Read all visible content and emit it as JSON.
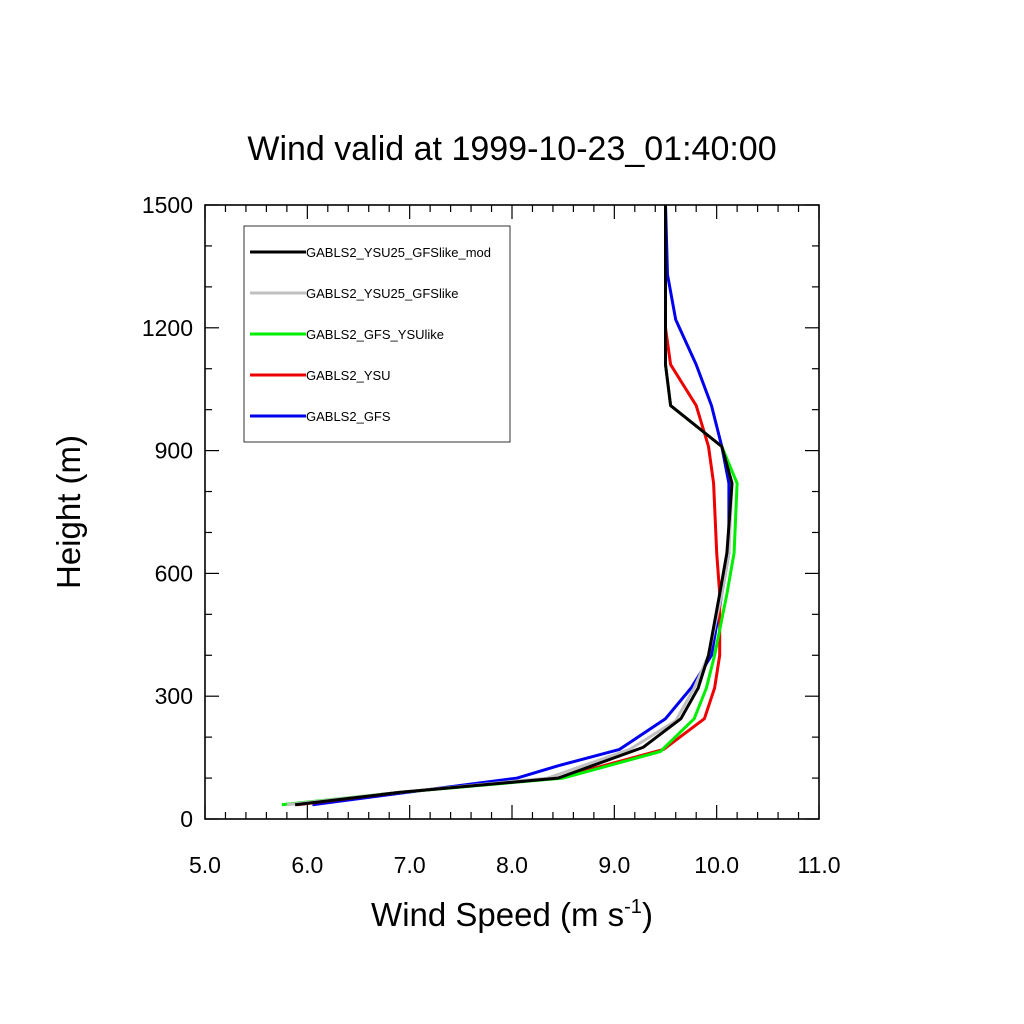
{
  "chart_data": {
    "type": "line",
    "title": "Wind valid at 1999-10-23_01:40:00",
    "xlabel": "Wind Speed (m s",
    "xlabel_sup": "-1",
    "xlabel_close": ")",
    "ylabel": "Height (m)",
    "xlim": [
      5.0,
      11.0
    ],
    "ylim": [
      0,
      1500
    ],
    "x_ticks": [
      "5.0",
      "6.0",
      "7.0",
      "8.0",
      "9.0",
      "10.0",
      "11.0"
    ],
    "y_ticks": [
      "0",
      "300",
      "600",
      "900",
      "1200",
      "1500"
    ],
    "legend_position": "top-left",
    "grid": false,
    "series": [
      {
        "name": "GABLS2_YSU25_GFSlike_mod",
        "color": "#000000",
        "points": [
          [
            5.88,
            35
          ],
          [
            6.9,
            65
          ],
          [
            8.45,
            100
          ],
          [
            9.28,
            175
          ],
          [
            9.65,
            245
          ],
          [
            9.82,
            320
          ],
          [
            9.92,
            400
          ],
          [
            10.03,
            550
          ],
          [
            10.1,
            650
          ],
          [
            10.15,
            820
          ],
          [
            10.05,
            910
          ],
          [
            9.55,
            1010
          ],
          [
            9.5,
            1110
          ],
          [
            9.5,
            1200
          ],
          [
            9.5,
            1350
          ],
          [
            9.5,
            1500
          ]
        ]
      },
      {
        "name": "GABLS2_YSU25_GFSlike",
        "color": "#c0c0c0",
        "points": [
          [
            5.8,
            35
          ],
          [
            6.9,
            65
          ],
          [
            8.35,
            100
          ],
          [
            9.15,
            170
          ],
          [
            9.6,
            240
          ],
          [
            9.78,
            320
          ],
          [
            9.92,
            400
          ],
          [
            10.05,
            550
          ],
          [
            10.12,
            650
          ],
          [
            10.15,
            820
          ],
          [
            10.05,
            910
          ],
          [
            9.55,
            1010
          ],
          [
            9.5,
            1110
          ],
          [
            9.5,
            1200
          ],
          [
            9.5,
            1500
          ]
        ]
      },
      {
        "name": "GABLS2_GFS_YSUlike",
        "color": "#00ee00",
        "points": [
          [
            5.75,
            35
          ],
          [
            6.9,
            65
          ],
          [
            8.5,
            100
          ],
          [
            9.45,
            165
          ],
          [
            9.78,
            245
          ],
          [
            9.9,
            320
          ],
          [
            9.98,
            400
          ],
          [
            10.1,
            550
          ],
          [
            10.17,
            650
          ],
          [
            10.2,
            820
          ],
          [
            10.05,
            910
          ],
          [
            9.55,
            1010
          ],
          [
            9.5,
            1110
          ],
          [
            9.5,
            1200
          ],
          [
            9.5,
            1500
          ]
        ]
      },
      {
        "name": "GABLS2_YSU",
        "color": "#ee0000",
        "points": [
          [
            5.9,
            35
          ],
          [
            6.9,
            65
          ],
          [
            8.45,
            100
          ],
          [
            9.48,
            170
          ],
          [
            9.88,
            245
          ],
          [
            9.98,
            320
          ],
          [
            10.03,
            400
          ],
          [
            10.03,
            550
          ],
          [
            10.0,
            650
          ],
          [
            9.97,
            820
          ],
          [
            9.92,
            910
          ],
          [
            9.8,
            1010
          ],
          [
            9.55,
            1110
          ],
          [
            9.5,
            1200
          ],
          [
            9.5,
            1500
          ]
        ]
      },
      {
        "name": "GABLS2_GFS",
        "color": "#0000ee",
        "points": [
          [
            6.05,
            35
          ],
          [
            8.05,
            100
          ],
          [
            8.45,
            130
          ],
          [
            9.05,
            170
          ],
          [
            9.5,
            245
          ],
          [
            9.75,
            320
          ],
          [
            9.95,
            400
          ],
          [
            10.05,
            550
          ],
          [
            10.12,
            650
          ],
          [
            10.12,
            820
          ],
          [
            10.05,
            910
          ],
          [
            9.95,
            1010
          ],
          [
            9.8,
            1110
          ],
          [
            9.6,
            1220
          ],
          [
            9.52,
            1330
          ],
          [
            9.5,
            1500
          ]
        ]
      }
    ]
  }
}
